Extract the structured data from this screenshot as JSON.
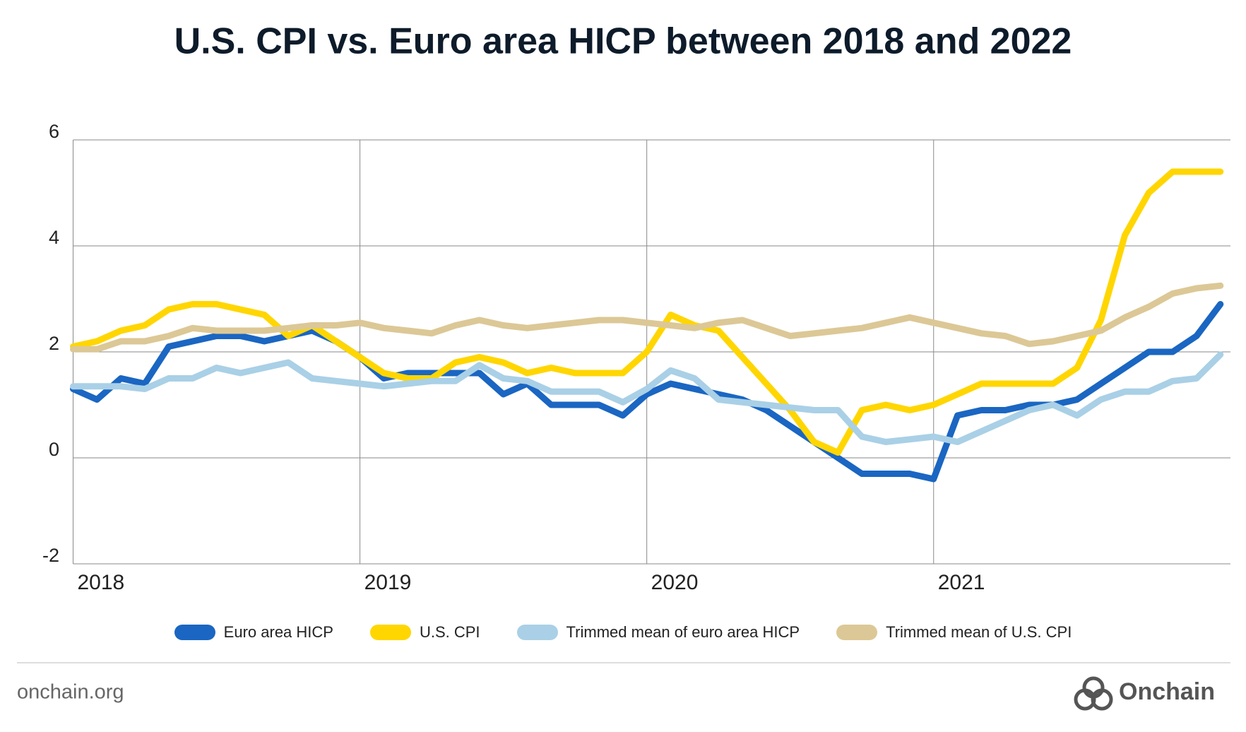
{
  "chart_data": {
    "type": "line",
    "title": "U.S. CPI vs. Euro area HICP between 2018 and 2022",
    "categories": [
      "2018",
      null,
      null,
      null,
      null,
      null,
      null,
      null,
      null,
      null,
      null,
      null,
      "2019",
      null,
      null,
      null,
      null,
      null,
      null,
      null,
      null,
      null,
      null,
      null,
      "2020",
      null,
      null,
      null,
      null,
      null,
      null,
      null,
      null,
      null,
      null,
      null,
      "2021",
      null,
      null,
      null,
      null,
      null,
      null,
      null,
      null,
      null,
      null,
      null,
      null
    ],
    "series": [
      {
        "name": "Euro area HICP",
        "color": "#1a66c2",
        "values": [
          1.3,
          1.1,
          1.5,
          1.4,
          2.1,
          2.2,
          2.3,
          2.3,
          2.2,
          2.3,
          2.4,
          2.2,
          1.9,
          1.5,
          1.6,
          1.6,
          1.6,
          1.6,
          1.2,
          1.4,
          1.0,
          1.0,
          1.0,
          0.8,
          1.2,
          1.4,
          1.3,
          1.2,
          1.1,
          0.9,
          0.6,
          0.3,
          0.0,
          -0.3,
          -0.3,
          -0.3,
          -0.4,
          0.8,
          0.9,
          0.9,
          1.0,
          1.0,
          1.1,
          1.4,
          1.7,
          2.0,
          2.0,
          2.3,
          2.9
        ]
      },
      {
        "name": "U.S. CPI",
        "color": "#ffd600",
        "values": [
          2.1,
          2.2,
          2.4,
          2.5,
          2.8,
          2.9,
          2.9,
          2.8,
          2.7,
          2.3,
          2.5,
          2.2,
          1.9,
          1.6,
          1.5,
          1.5,
          1.8,
          1.9,
          1.8,
          1.6,
          1.7,
          1.6,
          1.6,
          1.6,
          2.0,
          2.7,
          2.5,
          2.4,
          1.9,
          1.4,
          0.9,
          0.3,
          0.1,
          0.9,
          1.0,
          0.9,
          1.0,
          1.2,
          1.4,
          1.4,
          1.4,
          1.4,
          1.7,
          2.6,
          4.2,
          5.0,
          5.4,
          5.4,
          5.4
        ]
      },
      {
        "name": "Trimmed mean of euro area HICP",
        "color": "#a9d0e6",
        "values": [
          1.35,
          1.35,
          1.35,
          1.3,
          1.5,
          1.5,
          1.7,
          1.6,
          1.7,
          1.8,
          1.5,
          1.45,
          1.4,
          1.35,
          1.4,
          1.45,
          1.45,
          1.75,
          1.5,
          1.45,
          1.25,
          1.25,
          1.25,
          1.05,
          1.3,
          1.65,
          1.5,
          1.1,
          1.05,
          1.0,
          0.95,
          0.9,
          0.9,
          0.4,
          0.3,
          0.35,
          0.4,
          0.3,
          0.5,
          0.7,
          0.9,
          1.0,
          0.8,
          1.1,
          1.25,
          1.25,
          1.45,
          1.5,
          1.95
        ]
      },
      {
        "name": "Trimmed mean of U.S. CPI",
        "color": "#dcc896",
        "values": [
          2.05,
          2.05,
          2.2,
          2.2,
          2.3,
          2.45,
          2.4,
          2.4,
          2.4,
          2.45,
          2.5,
          2.5,
          2.55,
          2.45,
          2.4,
          2.35,
          2.5,
          2.6,
          2.5,
          2.45,
          2.5,
          2.55,
          2.6,
          2.6,
          2.55,
          2.5,
          2.45,
          2.55,
          2.6,
          2.45,
          2.3,
          2.35,
          2.4,
          2.45,
          2.55,
          2.65,
          2.55,
          2.45,
          2.35,
          2.3,
          2.15,
          2.2,
          2.3,
          2.4,
          2.65,
          2.85,
          3.1,
          3.2,
          3.25
        ]
      }
    ],
    "ylim": [
      -2,
      6
    ],
    "yticks": [
      -2,
      0,
      2,
      4,
      6
    ],
    "grid": true
  },
  "footer": {
    "source": "onchain.org",
    "brand": "Onchain"
  }
}
